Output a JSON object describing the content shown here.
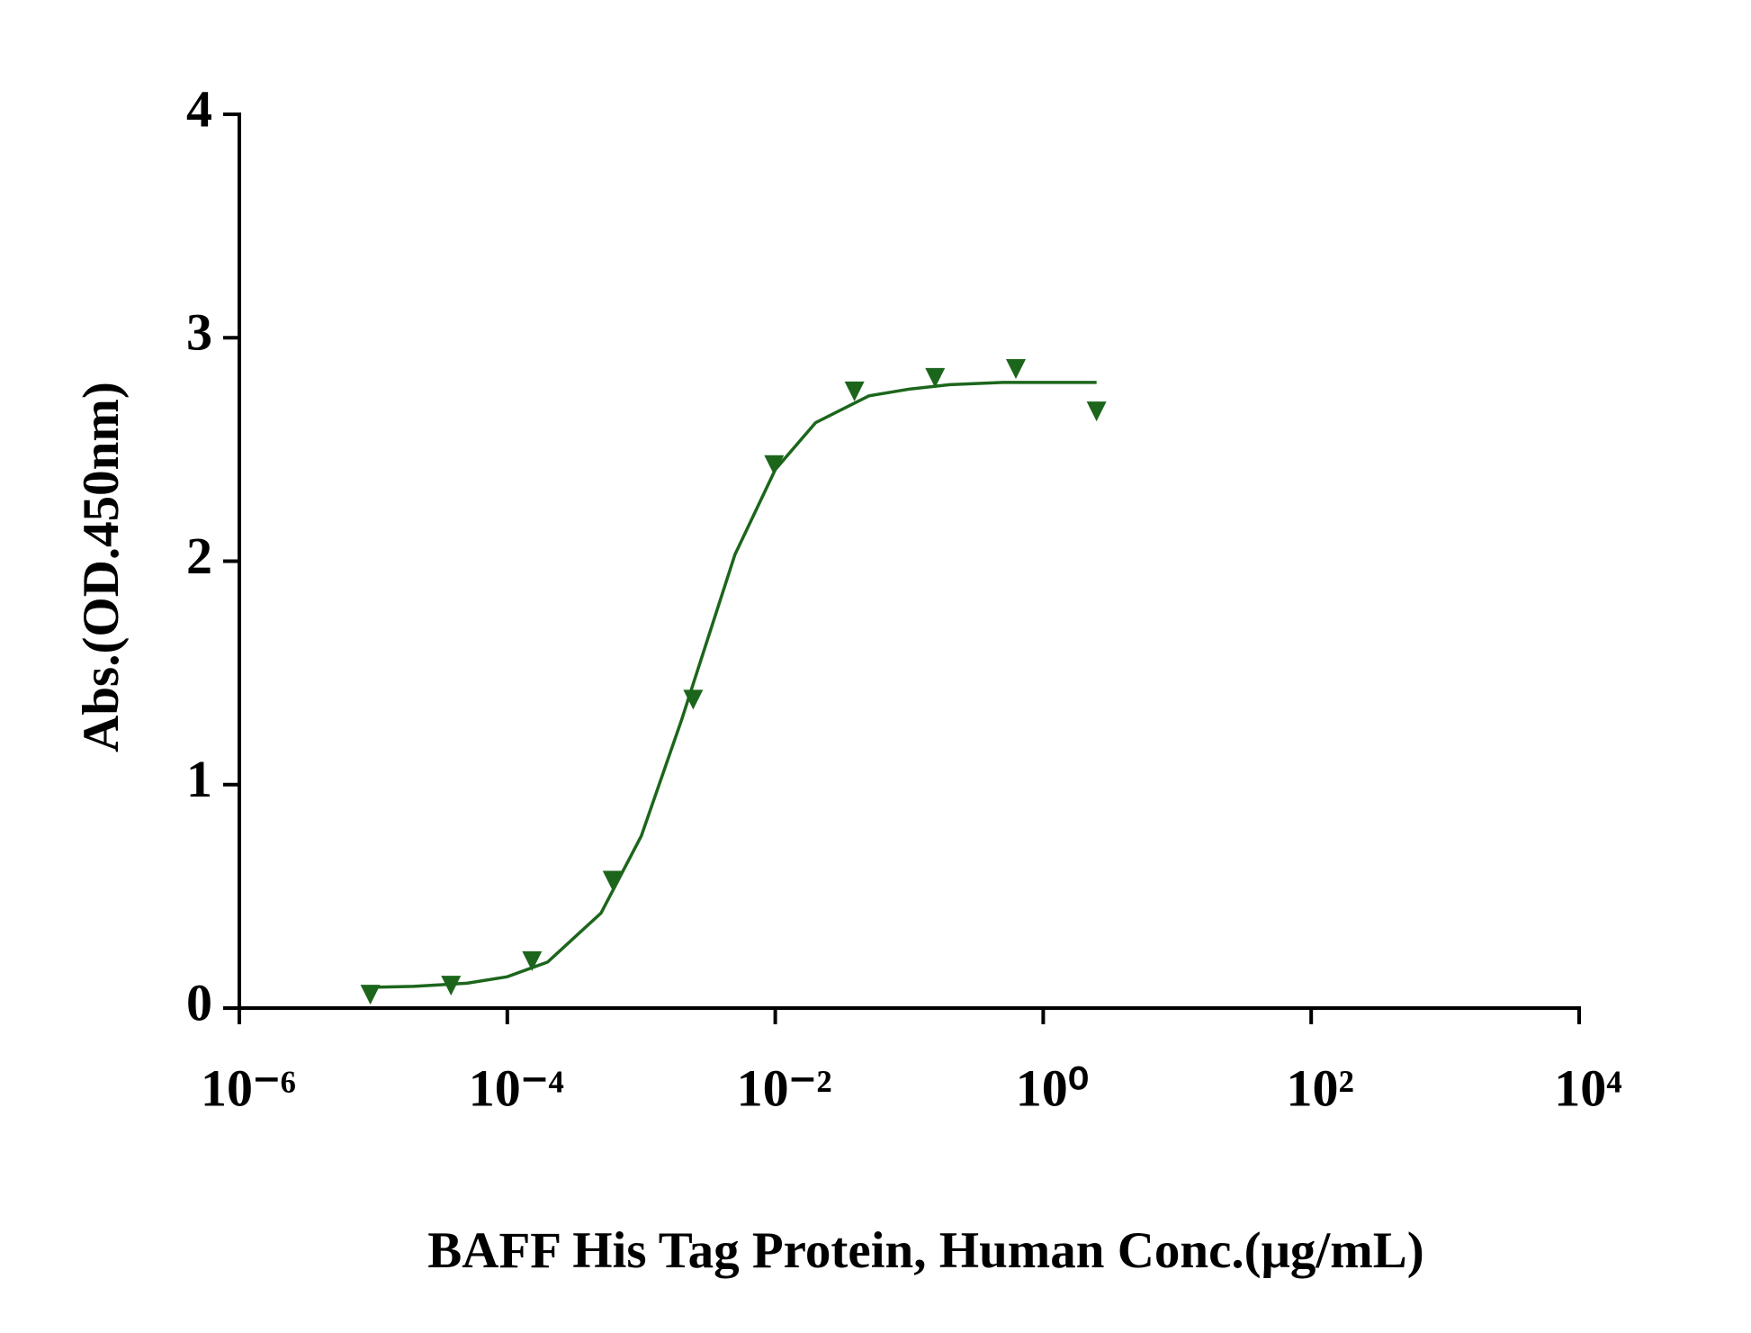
{
  "chart_data": {
    "type": "scatter",
    "xlabel": "BAFF His Tag Protein, Human  Conc.(μg/mL)",
    "ylabel": "Abs.(OD.450nm)",
    "xscale": "log",
    "xlim": [
      1e-06,
      10000
    ],
    "xticks": [
      {
        "value": 1e-06,
        "label": "10⁻⁶"
      },
      {
        "value": 0.0001,
        "label": "10⁻⁴"
      },
      {
        "value": 0.01,
        "label": "10⁻²"
      },
      {
        "value": 1,
        "label": "10⁰"
      },
      {
        "value": 100,
        "label": "10²"
      },
      {
        "value": 10000,
        "label": "10⁴"
      }
    ],
    "ylim": [
      0,
      4
    ],
    "yticks": [
      0,
      1,
      2,
      3,
      4
    ],
    "grid": false,
    "series": [
      {
        "kind": "points",
        "marker": "triangle-down",
        "color": "#1c661c",
        "x": [
          9.5e-06,
          3.8e-05,
          0.000153,
          0.00061,
          0.00244,
          0.0098,
          0.039,
          0.156,
          0.625,
          2.5
        ],
        "values": [
          0.06,
          0.1,
          0.21,
          0.57,
          1.38,
          2.43,
          2.76,
          2.82,
          2.86,
          2.67
        ]
      },
      {
        "kind": "line",
        "color": "#1c661c",
        "x": [
          1e-05,
          2e-05,
          5e-05,
          0.0001,
          0.0002,
          0.0005,
          0.001,
          0.002,
          0.005,
          0.01,
          0.02,
          0.05,
          0.1,
          0.2,
          0.5,
          1,
          2.5
        ],
        "values": [
          0.093,
          0.097,
          0.111,
          0.14,
          0.206,
          0.425,
          0.77,
          1.29,
          2.03,
          2.41,
          2.62,
          2.74,
          2.77,
          2.79,
          2.8,
          2.8,
          2.8
        ]
      }
    ]
  }
}
